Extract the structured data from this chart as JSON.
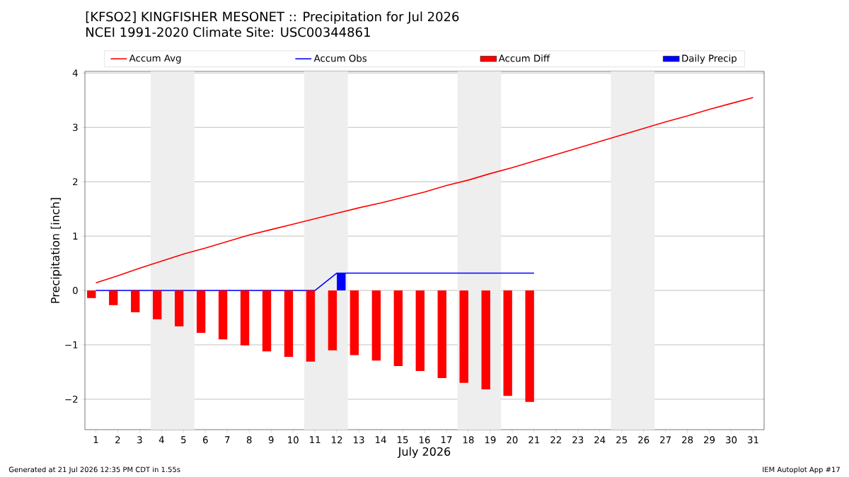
{
  "chart_data": {
    "type": "line",
    "title": "[KFSO2] KINGFISHER MESONET :: Precipitation for Jul 2026",
    "subtitle": "NCEI 1991-2020 Climate Site: USC00344861",
    "xlabel": "July 2026",
    "ylabel": "Precipitation [inch]",
    "x": [
      1,
      2,
      3,
      4,
      5,
      6,
      7,
      8,
      9,
      10,
      11,
      12,
      13,
      14,
      15,
      16,
      17,
      18,
      19,
      20,
      21,
      22,
      23,
      24,
      25,
      26,
      27,
      28,
      29,
      30,
      31
    ],
    "series": [
      {
        "name": "Accum Avg",
        "color": "#ff0000",
        "values": [
          0.14,
          0.27,
          0.41,
          0.54,
          0.67,
          0.78,
          0.9,
          1.02,
          1.12,
          1.22,
          1.32,
          1.42,
          1.52,
          1.61,
          1.71,
          1.81,
          1.93,
          2.03,
          2.15,
          2.26,
          2.38,
          2.5,
          2.62,
          2.74,
          2.86,
          2.98,
          3.1,
          3.21,
          3.33,
          3.44,
          3.55
        ]
      },
      {
        "name": "Accum Obs",
        "color": "#0000ff",
        "values": [
          0,
          0,
          0,
          0,
          0,
          0,
          0,
          0,
          0,
          0,
          0,
          0.32,
          0.32,
          0.32,
          0.32,
          0.32,
          0.32,
          0.32,
          0.32,
          0.32,
          0.32,
          null,
          null,
          null,
          null,
          null,
          null,
          null,
          null,
          null,
          null
        ]
      },
      {
        "name": "Accum Diff",
        "type": "bar",
        "color": "#ff0000",
        "values": [
          -0.14,
          -0.27,
          -0.4,
          -0.53,
          -0.66,
          -0.78,
          -0.9,
          -1.01,
          -1.12,
          -1.22,
          -1.31,
          -1.1,
          -1.19,
          -1.29,
          -1.39,
          -1.48,
          -1.61,
          -1.7,
          -1.82,
          -1.94,
          -2.05,
          null,
          null,
          null,
          null,
          null,
          null,
          null,
          null,
          null,
          null
        ]
      },
      {
        "name": "Daily Precip",
        "type": "bar",
        "color": "#0000ff",
        "values": [
          0,
          0,
          0,
          0,
          0,
          0,
          0,
          0,
          0,
          0,
          0,
          0.32,
          0,
          0,
          0,
          0,
          0,
          0,
          0,
          0,
          0,
          null,
          null,
          null,
          null,
          null,
          null,
          null,
          null,
          null,
          null
        ]
      }
    ],
    "xlim": [
      0.5,
      31.5
    ],
    "ylim": [
      -2.56,
      4.03
    ],
    "xticks": [
      1,
      2,
      3,
      4,
      5,
      6,
      7,
      8,
      9,
      10,
      11,
      12,
      13,
      14,
      15,
      16,
      17,
      18,
      19,
      20,
      21,
      22,
      23,
      24,
      25,
      26,
      27,
      28,
      29,
      30,
      31
    ],
    "yticks": [
      {
        "value": -2,
        "label": "−2"
      },
      {
        "value": -1,
        "label": "−1"
      },
      0,
      1,
      2,
      3,
      4
    ],
    "bands": [
      {
        "axis": "x",
        "from": 3.5,
        "to": 5.5,
        "color": "#eeeeee"
      },
      {
        "axis": "x",
        "from": 10.5,
        "to": 12.5,
        "color": "#eeeeee"
      },
      {
        "axis": "x",
        "from": 17.5,
        "to": 19.5,
        "color": "#eeeeee"
      },
      {
        "axis": "x",
        "from": 24.5,
        "to": 26.5,
        "color": "#eeeeee"
      }
    ],
    "grid": "y",
    "legend": "top",
    "marker": "none",
    "line_style": "solid",
    "annotations": [
      "Generated at 21 Jul 2026 12:35 PM CDT in 1.55s",
      "IEM Autoplot App #17"
    ]
  }
}
